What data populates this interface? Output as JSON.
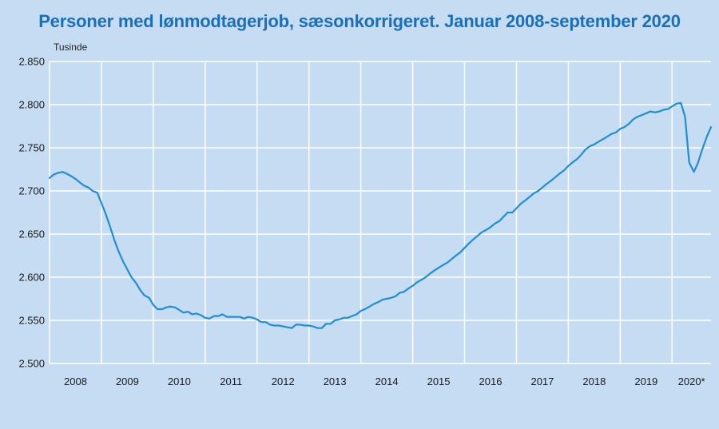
{
  "chart_data": {
    "type": "line",
    "title": "Personer med lønmodtagerjob, sæsonkorrigeret. Januar 2008-september 2020",
    "ylabel": "Tusinde",
    "ylim": [
      2500,
      2850
    ],
    "y_ticks": [
      "2.500",
      "2.550",
      "2.600",
      "2.650",
      "2.700",
      "2.750",
      "2.800",
      "2.850"
    ],
    "x_range": [
      2008.0,
      2020.75
    ],
    "year_labels": [
      "2008",
      "2009",
      "2010",
      "2011",
      "2012",
      "2013",
      "2014",
      "2015",
      "2016",
      "2017",
      "2018",
      "2019",
      "2020*"
    ],
    "line_color": "#1f8fd2",
    "grid": true,
    "series": [
      {
        "points": [
          [
            2008.0,
            2715
          ],
          [
            2008.08,
            2719
          ],
          [
            2008.17,
            2721
          ],
          [
            2008.25,
            2722
          ],
          [
            2008.33,
            2720
          ],
          [
            2008.42,
            2717
          ],
          [
            2008.5,
            2714
          ],
          [
            2008.58,
            2710
          ],
          [
            2008.67,
            2706
          ],
          [
            2008.75,
            2704
          ],
          [
            2008.83,
            2700
          ],
          [
            2008.92,
            2698
          ],
          [
            2009.0,
            2686
          ],
          [
            2009.08,
            2674
          ],
          [
            2009.17,
            2658
          ],
          [
            2009.25,
            2643
          ],
          [
            2009.33,
            2630
          ],
          [
            2009.42,
            2618
          ],
          [
            2009.5,
            2609
          ],
          [
            2009.58,
            2600
          ],
          [
            2009.67,
            2593
          ],
          [
            2009.75,
            2585
          ],
          [
            2009.83,
            2579
          ],
          [
            2009.92,
            2576
          ],
          [
            2010.0,
            2568
          ],
          [
            2010.08,
            2563
          ],
          [
            2010.17,
            2563
          ],
          [
            2010.25,
            2565
          ],
          [
            2010.33,
            2566
          ],
          [
            2010.42,
            2565
          ],
          [
            2010.5,
            2562
          ],
          [
            2010.58,
            2559
          ],
          [
            2010.67,
            2560
          ],
          [
            2010.75,
            2557
          ],
          [
            2010.83,
            2558
          ],
          [
            2010.92,
            2556
          ],
          [
            2011.0,
            2553
          ],
          [
            2011.08,
            2552
          ],
          [
            2011.17,
            2555
          ],
          [
            2011.25,
            2555
          ],
          [
            2011.33,
            2557
          ],
          [
            2011.42,
            2554
          ],
          [
            2011.5,
            2554
          ],
          [
            2011.58,
            2554
          ],
          [
            2011.67,
            2554
          ],
          [
            2011.75,
            2552
          ],
          [
            2011.83,
            2554
          ],
          [
            2011.92,
            2553
          ],
          [
            2012.0,
            2551
          ],
          [
            2012.08,
            2548
          ],
          [
            2012.17,
            2548
          ],
          [
            2012.25,
            2545
          ],
          [
            2012.33,
            2544
          ],
          [
            2012.42,
            2544
          ],
          [
            2012.5,
            2543
          ],
          [
            2012.58,
            2542
          ],
          [
            2012.67,
            2541
          ],
          [
            2012.75,
            2545
          ],
          [
            2012.83,
            2545
          ],
          [
            2012.92,
            2544
          ],
          [
            2013.0,
            2544
          ],
          [
            2013.08,
            2543
          ],
          [
            2013.17,
            2541
          ],
          [
            2013.25,
            2541
          ],
          [
            2013.33,
            2546
          ],
          [
            2013.42,
            2546
          ],
          [
            2013.5,
            2550
          ],
          [
            2013.58,
            2551
          ],
          [
            2013.67,
            2553
          ],
          [
            2013.75,
            2553
          ],
          [
            2013.83,
            2555
          ],
          [
            2013.92,
            2557
          ],
          [
            2014.0,
            2561
          ],
          [
            2014.08,
            2563
          ],
          [
            2014.17,
            2566
          ],
          [
            2014.25,
            2569
          ],
          [
            2014.33,
            2571
          ],
          [
            2014.42,
            2574
          ],
          [
            2014.5,
            2575
          ],
          [
            2014.58,
            2576
          ],
          [
            2014.67,
            2578
          ],
          [
            2014.75,
            2582
          ],
          [
            2014.83,
            2583
          ],
          [
            2014.92,
            2587
          ],
          [
            2015.0,
            2590
          ],
          [
            2015.08,
            2594
          ],
          [
            2015.17,
            2597
          ],
          [
            2015.25,
            2600
          ],
          [
            2015.33,
            2604
          ],
          [
            2015.42,
            2608
          ],
          [
            2015.5,
            2611
          ],
          [
            2015.58,
            2614
          ],
          [
            2015.67,
            2617
          ],
          [
            2015.75,
            2621
          ],
          [
            2015.83,
            2625
          ],
          [
            2015.92,
            2629
          ],
          [
            2016.0,
            2634
          ],
          [
            2016.08,
            2639
          ],
          [
            2016.17,
            2644
          ],
          [
            2016.25,
            2648
          ],
          [
            2016.33,
            2652
          ],
          [
            2016.42,
            2655
          ],
          [
            2016.5,
            2658
          ],
          [
            2016.58,
            2662
          ],
          [
            2016.67,
            2665
          ],
          [
            2016.75,
            2670
          ],
          [
            2016.83,
            2675
          ],
          [
            2016.92,
            2675
          ],
          [
            2017.0,
            2680
          ],
          [
            2017.08,
            2685
          ],
          [
            2017.17,
            2689
          ],
          [
            2017.25,
            2693
          ],
          [
            2017.33,
            2697
          ],
          [
            2017.42,
            2700
          ],
          [
            2017.5,
            2704
          ],
          [
            2017.58,
            2708
          ],
          [
            2017.67,
            2712
          ],
          [
            2017.75,
            2716
          ],
          [
            2017.83,
            2720
          ],
          [
            2017.92,
            2724
          ],
          [
            2018.0,
            2729
          ],
          [
            2018.08,
            2733
          ],
          [
            2018.17,
            2737
          ],
          [
            2018.25,
            2742
          ],
          [
            2018.33,
            2748
          ],
          [
            2018.42,
            2752
          ],
          [
            2018.5,
            2754
          ],
          [
            2018.58,
            2757
          ],
          [
            2018.67,
            2760
          ],
          [
            2018.75,
            2763
          ],
          [
            2018.83,
            2766
          ],
          [
            2018.92,
            2768
          ],
          [
            2019.0,
            2772
          ],
          [
            2019.08,
            2774
          ],
          [
            2019.17,
            2778
          ],
          [
            2019.25,
            2783
          ],
          [
            2019.33,
            2786
          ],
          [
            2019.42,
            2788
          ],
          [
            2019.5,
            2790
          ],
          [
            2019.58,
            2792
          ],
          [
            2019.67,
            2791
          ],
          [
            2019.75,
            2792
          ],
          [
            2019.83,
            2794
          ],
          [
            2019.92,
            2795
          ],
          [
            2020.0,
            2798
          ],
          [
            2020.08,
            2801
          ],
          [
            2020.17,
            2802
          ],
          [
            2020.25,
            2786
          ],
          [
            2020.33,
            2733
          ],
          [
            2020.42,
            2722
          ],
          [
            2020.5,
            2733
          ],
          [
            2020.58,
            2748
          ],
          [
            2020.67,
            2763
          ],
          [
            2020.75,
            2774
          ]
        ]
      }
    ]
  }
}
